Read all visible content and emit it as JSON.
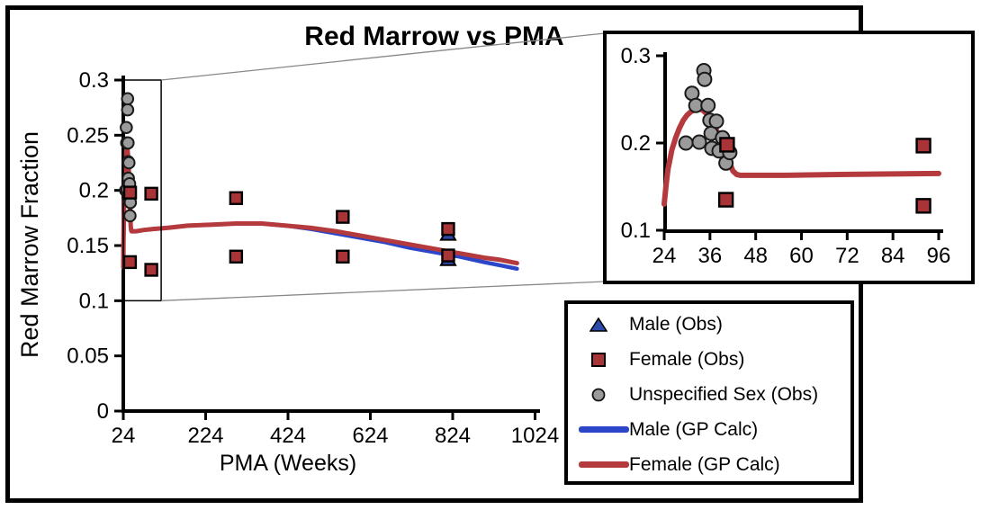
{
  "figure": {
    "title": "Red Marrow vs PMA",
    "background_color": "#ffffff",
    "border_color": "#000000",
    "connector_color": "#888888"
  },
  "chart_data": {
    "type": "scatter",
    "title": "Red Marrow vs PMA",
    "xlabel": "PMA (Weeks)",
    "ylabel": "Red Marrow Fraction",
    "grid": false,
    "main_axes": {
      "xlim": [
        24,
        1024
      ],
      "ylim": [
        0,
        0.3
      ],
      "xticks": [
        24,
        224,
        424,
        624,
        824,
        1024
      ],
      "xtick_labels": [
        "24",
        "224",
        "424",
        "624",
        "824",
        "1024"
      ],
      "yticks": [
        0,
        0.05,
        0.1,
        0.15,
        0.2,
        0.25,
        0.3
      ],
      "ytick_labels": [
        "0",
        "0.05",
        "0.1",
        "0.15",
        "0.2",
        "0.25",
        "0.3"
      ]
    },
    "inset_axes": {
      "xlim": [
        24,
        96
      ],
      "ylim": [
        0.1,
        0.3
      ],
      "xticks": [
        24,
        36,
        48,
        60,
        72,
        84,
        96
      ],
      "xtick_labels": [
        "24",
        "36",
        "48",
        "60",
        "72",
        "84",
        "96"
      ],
      "yticks": [
        0.1,
        0.2,
        0.3
      ],
      "ytick_labels": [
        "0.1",
        "0.2",
        "0.3"
      ]
    },
    "zoom_region": {
      "xlim": [
        24,
        116
      ],
      "ylim": [
        0.1,
        0.3
      ]
    },
    "series": [
      {
        "name": "Male (Obs)",
        "kind": "scatter",
        "marker": "triangle",
        "color": "#2C49AC",
        "points": [
          [
            813,
            0.163
          ],
          [
            813,
            0.14
          ]
        ]
      },
      {
        "name": "Female (Obs)",
        "kind": "scatter",
        "marker": "square",
        "color": "#A93438",
        "points": [
          [
            40.5,
            0.198
          ],
          [
            40.2,
            0.135
          ],
          [
            92,
            0.197
          ],
          [
            92,
            0.128
          ],
          [
            298,
            0.193
          ],
          [
            298,
            0.14
          ],
          [
            557,
            0.176
          ],
          [
            557,
            0.14
          ],
          [
            813,
            0.165
          ],
          [
            813,
            0.141
          ]
        ]
      },
      {
        "name": "Unspecified Sex (Obs)",
        "kind": "scatter",
        "marker": "circle",
        "color": "#9B9B9B",
        "points": [
          [
            29.7,
            0.2
          ],
          [
            31.3,
            0.257
          ],
          [
            32.3,
            0.243
          ],
          [
            33.2,
            0.201
          ],
          [
            34.4,
            0.283
          ],
          [
            34.6,
            0.273
          ],
          [
            35.5,
            0.243
          ],
          [
            36.0,
            0.226
          ],
          [
            36.3,
            0.211
          ],
          [
            36.5,
            0.194
          ],
          [
            37.7,
            0.225
          ],
          [
            38.4,
            0.191
          ],
          [
            39.3,
            0.206
          ],
          [
            40.2,
            0.177
          ],
          [
            41.2,
            0.189
          ]
        ]
      },
      {
        "name": "Male (GP Calc)",
        "kind": "line",
        "color": "#2B46C8",
        "points": [
          [
            24,
            0.13
          ],
          [
            24.5,
            0.152
          ],
          [
            25,
            0.17
          ],
          [
            26,
            0.192
          ],
          [
            27,
            0.206
          ],
          [
            28,
            0.217
          ],
          [
            29,
            0.226
          ],
          [
            30,
            0.232
          ],
          [
            31,
            0.236
          ],
          [
            32,
            0.238
          ],
          [
            33,
            0.239
          ],
          [
            34,
            0.238
          ],
          [
            35,
            0.234
          ],
          [
            36,
            0.228
          ],
          [
            37,
            0.221
          ],
          [
            38,
            0.212
          ],
          [
            39,
            0.202
          ],
          [
            40,
            0.191
          ],
          [
            41,
            0.179
          ],
          [
            42,
            0.168
          ],
          [
            43,
            0.164
          ],
          [
            44,
            0.163
          ],
          [
            48,
            0.163
          ],
          [
            56,
            0.163
          ],
          [
            72,
            0.164
          ],
          [
            96,
            0.165
          ],
          [
            130,
            0.166
          ],
          [
            180,
            0.168
          ],
          [
            240,
            0.169
          ],
          [
            300,
            0.17
          ],
          [
            360,
            0.17
          ],
          [
            420,
            0.168
          ],
          [
            480,
            0.165
          ],
          [
            540,
            0.161
          ],
          [
            600,
            0.157
          ],
          [
            660,
            0.153
          ],
          [
            720,
            0.148
          ],
          [
            780,
            0.144
          ],
          [
            840,
            0.14
          ],
          [
            900,
            0.135
          ],
          [
            940,
            0.132
          ],
          [
            980,
            0.129
          ]
        ]
      },
      {
        "name": "Female (GP Calc)",
        "kind": "line",
        "color": "#B43A3E",
        "points": [
          [
            24,
            0.13
          ],
          [
            24.5,
            0.152
          ],
          [
            25,
            0.17
          ],
          [
            26,
            0.192
          ],
          [
            27,
            0.206
          ],
          [
            28,
            0.217
          ],
          [
            29,
            0.226
          ],
          [
            30,
            0.232
          ],
          [
            31,
            0.236
          ],
          [
            32,
            0.238
          ],
          [
            33,
            0.239
          ],
          [
            34,
            0.238
          ],
          [
            35,
            0.234
          ],
          [
            36,
            0.228
          ],
          [
            37,
            0.221
          ],
          [
            38,
            0.212
          ],
          [
            39,
            0.202
          ],
          [
            40,
            0.191
          ],
          [
            41,
            0.179
          ],
          [
            42,
            0.168
          ],
          [
            43,
            0.164
          ],
          [
            44,
            0.163
          ],
          [
            48,
            0.163
          ],
          [
            56,
            0.163
          ],
          [
            72,
            0.164
          ],
          [
            96,
            0.165
          ],
          [
            130,
            0.166
          ],
          [
            180,
            0.168
          ],
          [
            240,
            0.169
          ],
          [
            300,
            0.17
          ],
          [
            360,
            0.17
          ],
          [
            420,
            0.168
          ],
          [
            480,
            0.166
          ],
          [
            540,
            0.163
          ],
          [
            600,
            0.159
          ],
          [
            660,
            0.155
          ],
          [
            720,
            0.151
          ],
          [
            780,
            0.147
          ],
          [
            840,
            0.143
          ],
          [
            900,
            0.139
          ],
          [
            940,
            0.137
          ],
          [
            980,
            0.134
          ]
        ]
      }
    ],
    "legend": {
      "position": "bottom-right",
      "items": [
        {
          "label": "Male (Obs)",
          "marker": "triangle",
          "color": "#2C49AC"
        },
        {
          "label": "Female (Obs)",
          "marker": "square",
          "color": "#A93438"
        },
        {
          "label": "Unspecified Sex (Obs)",
          "marker": "circle",
          "color": "#9B9B9B"
        },
        {
          "label": "Male (GP Calc)",
          "marker": "line",
          "color": "#2B46C8"
        },
        {
          "label": "Female (GP Calc)",
          "marker": "line",
          "color": "#B43A3E"
        }
      ]
    }
  }
}
